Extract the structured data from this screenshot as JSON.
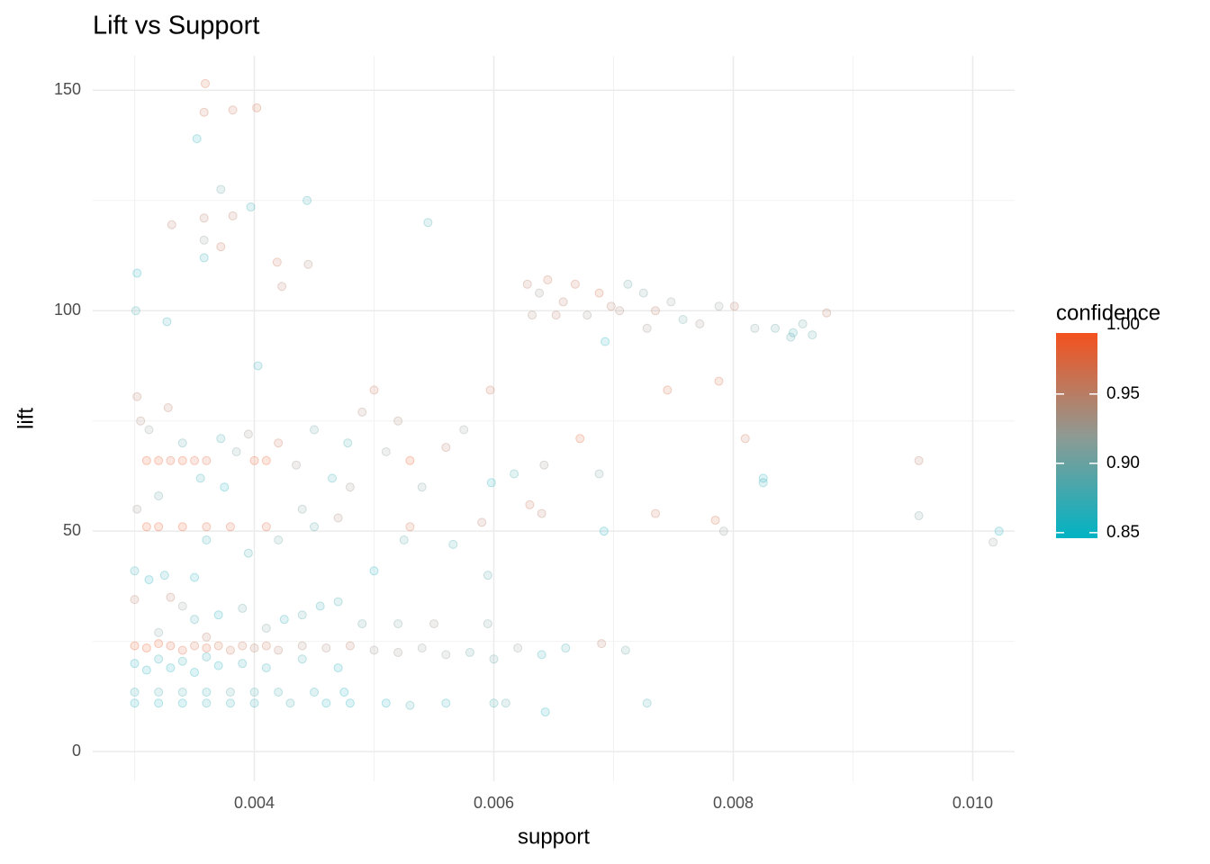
{
  "chart_data": {
    "type": "scatter",
    "title": "Lift vs Support",
    "x_label": "support",
    "y_label": "lift",
    "legend_title": "confidence",
    "xlim": [
      0.00265,
      0.01035
    ],
    "ylim": [
      -6.7,
      157.8
    ],
    "xticks": [
      {
        "value": 0.004,
        "label": "0.004"
      },
      {
        "value": 0.006,
        "label": "0.006"
      },
      {
        "value": 0.008,
        "label": "0.008"
      },
      {
        "value": 0.01,
        "label": "0.010"
      }
    ],
    "yticks": [
      0,
      50,
      100,
      150
    ],
    "x_minor_ticks": [
      0.003,
      0.005,
      0.007,
      0.009
    ],
    "y_minor_ticks": [
      25,
      75,
      125
    ],
    "grid": true,
    "colorlim": [
      0.846,
      0.994
    ],
    "colorticks": [
      {
        "value": 0.85,
        "label": "0.85"
      },
      {
        "value": 0.9,
        "label": "0.90"
      },
      {
        "value": 0.95,
        "label": "0.95"
      },
      {
        "value": 1.0,
        "label": "1.00"
      }
    ],
    "low_color": "#00B3C4",
    "high_color": "#F4511E",
    "x": [
      0.00359,
      0.00358,
      0.00382,
      0.00402,
      0.00352,
      0.00372,
      0.00444,
      0.00397,
      0.00358,
      0.00331,
      0.00382,
      0.00545,
      0.00358,
      0.00372,
      0.00358,
      0.00419,
      0.00445,
      0.00302,
      0.00423,
      0.00301,
      0.00327,
      0.00403,
      0.00628,
      0.00638,
      0.00645,
      0.00658,
      0.00668,
      0.00678,
      0.00688,
      0.00698,
      0.00712,
      0.00725,
      0.00735,
      0.00748,
      0.00758,
      0.00772,
      0.00788,
      0.00801,
      0.00818,
      0.00835,
      0.00848,
      0.00858,
      0.00878,
      0.00632,
      0.00652,
      0.00705,
      0.00728,
      0.00693,
      0.0085,
      0.00866,
      0.0031,
      0.0032,
      0.0033,
      0.0034,
      0.0035,
      0.0036,
      0.004,
      0.0041,
      0.0053,
      0.0031,
      0.0032,
      0.0034,
      0.0036,
      0.0038,
      0.0041,
      0.0053,
      0.00302,
      0.00305,
      0.00312,
      0.00328,
      0.0034,
      0.00355,
      0.00372,
      0.00385,
      0.00395,
      0.0042,
      0.00435,
      0.0045,
      0.00465,
      0.00478,
      0.0049,
      0.005,
      0.0051,
      0.0052,
      0.0054,
      0.0056,
      0.00575,
      0.0059,
      0.00597,
      0.00598,
      0.00617,
      0.00642,
      0.00672,
      0.00688,
      0.00692,
      0.00745,
      0.00735,
      0.00788,
      0.00785,
      0.00792,
      0.0081,
      0.00825,
      0.00825,
      0.00955,
      0.00955,
      0.01022,
      0.01017,
      0.00302,
      0.0032,
      0.0036,
      0.00395,
      0.0044,
      0.0045,
      0.0048,
      0.005,
      0.00525,
      0.00566,
      0.00595,
      0.0063,
      0.0064,
      0.00375,
      0.0042,
      0.0047,
      0.003,
      0.0031,
      0.0032,
      0.0033,
      0.0034,
      0.0035,
      0.0036,
      0.0037,
      0.0038,
      0.0039,
      0.004,
      0.0041,
      0.0042,
      0.0044,
      0.0046,
      0.0048,
      0.005,
      0.0052,
      0.0054,
      0.0056,
      0.0058,
      0.006,
      0.0062,
      0.0064,
      0.0066,
      0.0069,
      0.0071,
      0.003,
      0.0031,
      0.0032,
      0.0033,
      0.0034,
      0.0035,
      0.0036,
      0.0037,
      0.0039,
      0.0041,
      0.0044,
      0.0047,
      0.003,
      0.0032,
      0.0034,
      0.0036,
      0.0038,
      0.004,
      0.0042,
      0.0045,
      0.00475,
      0.003,
      0.0032,
      0.0034,
      0.0036,
      0.0038,
      0.004,
      0.0043,
      0.0046,
      0.0048,
      0.0051,
      0.0053,
      0.0056,
      0.006,
      0.0061,
      0.00643,
      0.00728,
      0.003,
      0.00312,
      0.00325,
      0.0033,
      0.003,
      0.0034,
      0.0035,
      0.0037,
      0.0039,
      0.0041,
      0.00425,
      0.0044,
      0.00455,
      0.0047,
      0.0049,
      0.0052,
      0.0055,
      0.00595,
      0.0035,
      0.0032,
      0.0036
    ],
    "y": [
      151.5,
      145,
      145.5,
      146,
      139,
      127.5,
      125,
      123.5,
      121,
      119.5,
      121.5,
      120,
      116,
      114.5,
      112,
      111,
      110.5,
      108.5,
      105.5,
      100,
      97.5,
      87.5,
      106,
      104,
      107,
      102,
      106,
      99,
      104,
      101,
      106,
      104,
      100,
      102,
      98,
      97,
      101,
      101,
      96,
      96,
      94,
      97,
      99.5,
      99,
      99,
      100,
      96,
      93,
      95,
      94.5,
      66,
      66,
      66,
      66,
      66,
      66,
      66,
      66,
      66,
      51,
      51,
      51,
      51,
      51,
      51,
      51,
      80.5,
      75,
      73,
      78,
      70,
      62,
      71,
      68,
      72,
      70,
      65,
      73,
      62,
      70,
      77,
      82,
      68,
      75,
      60,
      69,
      73,
      52,
      82,
      61,
      63,
      65,
      71,
      63,
      50,
      82,
      54,
      84,
      52.5,
      50,
      71,
      62,
      61,
      66,
      53.5,
      50,
      47.5,
      55,
      58,
      48,
      45,
      55,
      51,
      60,
      41,
      48,
      47,
      40,
      56,
      54,
      60,
      48,
      53,
      24,
      23.5,
      24.5,
      24,
      23,
      24,
      23.5,
      24,
      23,
      24,
      23.5,
      24,
      23,
      24,
      23.5,
      24,
      23,
      22.5,
      23.5,
      22,
      22.5,
      21,
      23.5,
      22,
      23.5,
      24.5,
      23,
      20,
      18.5,
      21,
      19,
      20.5,
      18,
      21.5,
      19.5,
      20,
      19,
      21,
      19,
      13.5,
      13.5,
      13.5,
      13.5,
      13.5,
      13.5,
      13.5,
      13.5,
      13.5,
      11,
      11,
      11,
      11,
      11,
      11,
      11,
      11,
      11,
      11,
      10.5,
      11,
      11,
      11,
      9,
      11,
      41,
      39,
      40,
      35,
      34.5,
      33,
      30,
      31,
      32.5,
      28,
      30,
      31,
      33,
      34,
      29,
      29,
      29,
      29,
      39.5,
      27,
      26
    ],
    "confidence": [
      0.97,
      0.96,
      0.96,
      0.97,
      0.86,
      0.9,
      0.87,
      0.87,
      0.95,
      0.95,
      0.95,
      0.88,
      0.92,
      0.96,
      0.87,
      0.96,
      0.94,
      0.86,
      0.95,
      0.88,
      0.87,
      0.87,
      0.95,
      0.93,
      0.96,
      0.95,
      0.96,
      0.93,
      0.97,
      0.95,
      0.9,
      0.91,
      0.95,
      0.92,
      0.9,
      0.93,
      0.92,
      0.95,
      0.91,
      0.9,
      0.89,
      0.9,
      0.95,
      0.94,
      0.95,
      0.94,
      0.93,
      0.86,
      0.88,
      0.89,
      0.99,
      0.99,
      0.98,
      0.99,
      0.98,
      0.98,
      0.99,
      0.99,
      0.99,
      0.99,
      0.99,
      0.99,
      0.98,
      0.98,
      0.98,
      0.97,
      0.95,
      0.94,
      0.92,
      0.95,
      0.89,
      0.87,
      0.88,
      0.91,
      0.93,
      0.96,
      0.93,
      0.9,
      0.87,
      0.88,
      0.94,
      0.96,
      0.92,
      0.94,
      0.91,
      0.95,
      0.92,
      0.95,
      0.96,
      0.86,
      0.88,
      0.93,
      0.98,
      0.91,
      0.86,
      0.97,
      0.96,
      0.97,
      0.97,
      0.92,
      0.96,
      0.86,
      0.87,
      0.95,
      0.91,
      0.86,
      0.92,
      0.93,
      0.9,
      0.87,
      0.88,
      0.91,
      0.89,
      0.93,
      0.86,
      0.89,
      0.88,
      0.89,
      0.96,
      0.95,
      0.86,
      0.9,
      0.94,
      0.99,
      0.99,
      0.99,
      0.98,
      0.98,
      0.97,
      0.98,
      0.97,
      0.96,
      0.96,
      0.95,
      0.96,
      0.95,
      0.94,
      0.94,
      0.95,
      0.93,
      0.93,
      0.92,
      0.92,
      0.9,
      0.9,
      0.92,
      0.87,
      0.88,
      0.95,
      0.9,
      0.86,
      0.86,
      0.87,
      0.86,
      0.87,
      0.86,
      0.87,
      0.86,
      0.87,
      0.87,
      0.88,
      0.86,
      0.87,
      0.88,
      0.88,
      0.87,
      0.89,
      0.88,
      0.88,
      0.87,
      0.86,
      0.86,
      0.86,
      0.86,
      0.87,
      0.87,
      0.87,
      0.88,
      0.86,
      0.86,
      0.86,
      0.88,
      0.87,
      0.88,
      0.89,
      0.86,
      0.88,
      0.87,
      0.86,
      0.87,
      0.95,
      0.95,
      0.92,
      0.88,
      0.86,
      0.9,
      0.91,
      0.87,
      0.89,
      0.87,
      0.88,
      0.9,
      0.91,
      0.93,
      0.91,
      0.86,
      0.91,
      0.95
    ]
  }
}
